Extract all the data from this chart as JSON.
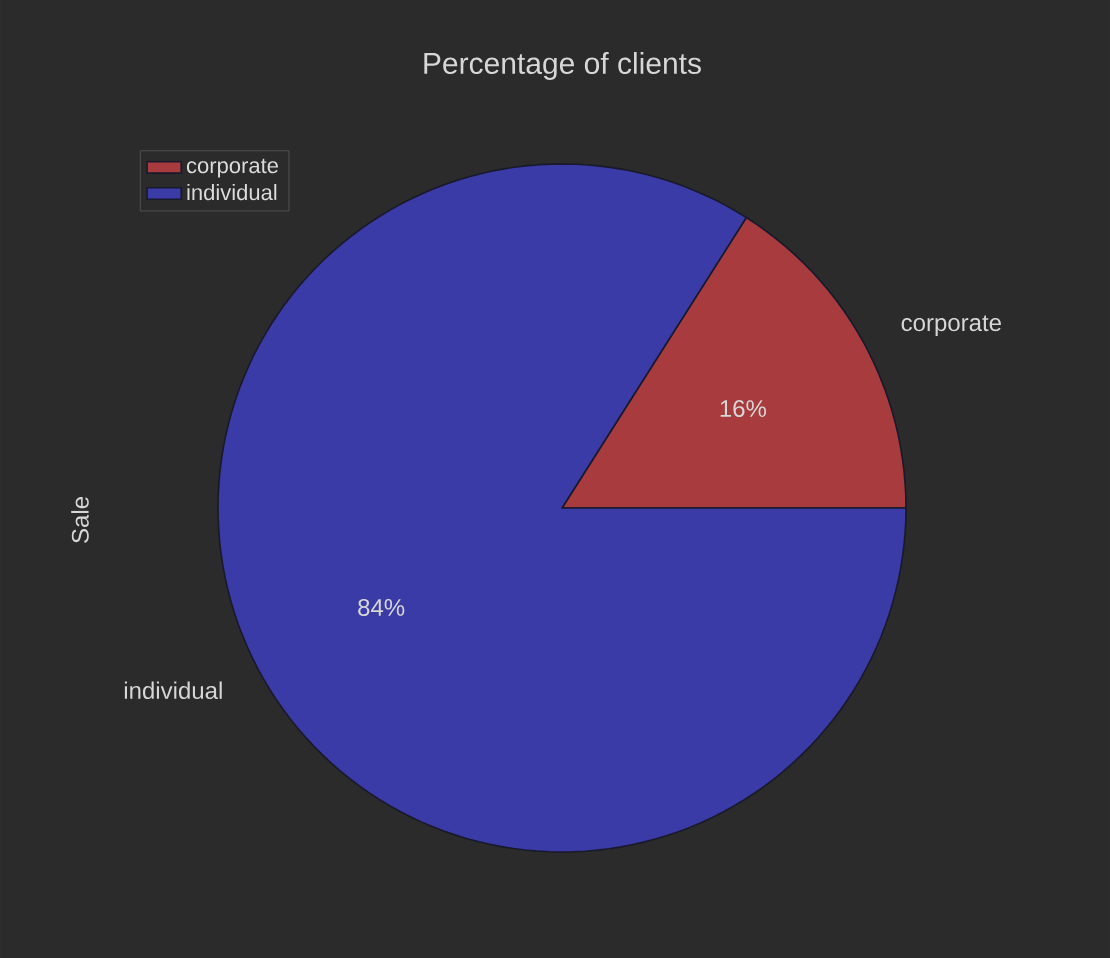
{
  "chart_data": {
    "type": "pie",
    "title": "Percentage of clients",
    "ylabel": "Sale",
    "categories": [
      "corporate",
      "individual"
    ],
    "values": [
      16,
      84
    ],
    "colors": [
      "#a83b3e",
      "#3b3ba8"
    ],
    "value_labels": [
      "16%",
      "84%"
    ],
    "legend": "top left"
  }
}
